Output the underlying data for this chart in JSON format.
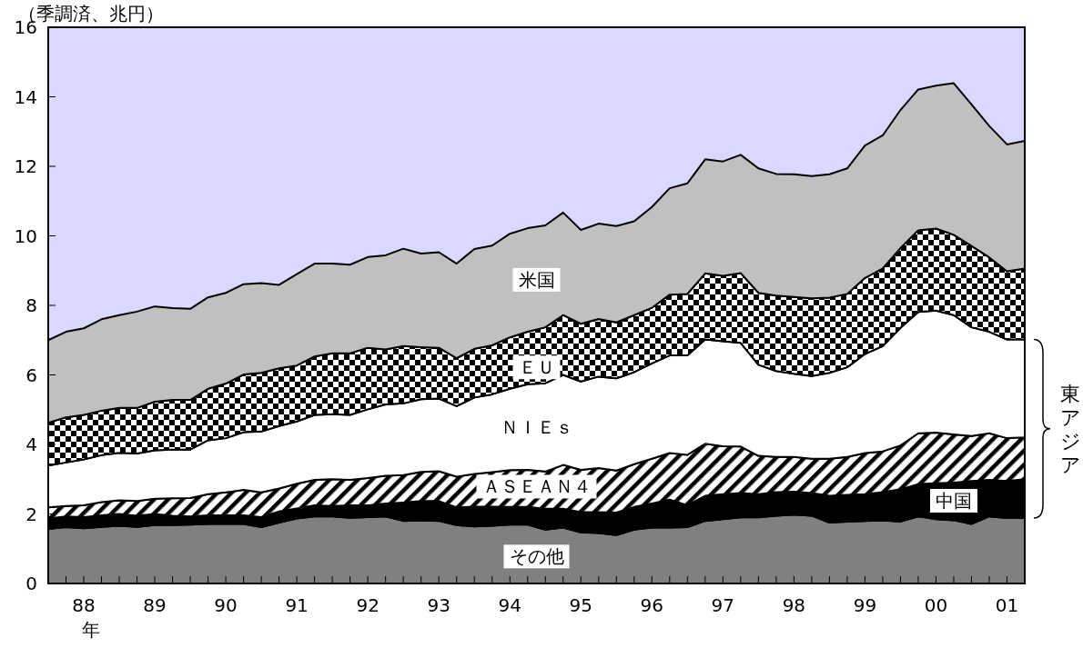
{
  "chart_data": {
    "type": "area",
    "stacked": true,
    "ylabel": "（季調済、兆円）",
    "xlabel": "年",
    "annotations": [
      "東アジア"
    ],
    "legend": false,
    "grid": false,
    "categories": [
      null,
      null,
      "88",
      null,
      null,
      null,
      "89",
      null,
      null,
      null,
      "90",
      null,
      null,
      null,
      "91",
      null,
      null,
      null,
      "92",
      null,
      null,
      null,
      "93",
      null,
      null,
      null,
      "94",
      null,
      null,
      null,
      "95",
      null,
      null,
      null,
      "96",
      null,
      null,
      null,
      "97",
      null,
      null,
      null,
      "98",
      null,
      null,
      null,
      "99",
      null,
      null,
      null,
      "00",
      null,
      null,
      null,
      "01",
      null
    ],
    "ylim": [
      0,
      16
    ],
    "yticks": [
      0,
      2,
      4,
      6,
      8,
      10,
      12,
      14,
      16
    ],
    "series": [
      {
        "name": "その他",
        "color": "#808080",
        "values": [
          1.57,
          1.62,
          1.59,
          1.63,
          1.66,
          1.63,
          1.68,
          1.68,
          1.69,
          1.71,
          1.71,
          1.71,
          1.62,
          1.75,
          1.87,
          1.93,
          1.93,
          1.89,
          1.91,
          1.93,
          1.8,
          1.82,
          1.8,
          1.68,
          1.64,
          1.66,
          1.69,
          1.69,
          1.55,
          1.61,
          1.47,
          1.45,
          1.39,
          1.55,
          1.61,
          1.61,
          1.62,
          1.8,
          1.85,
          1.9,
          1.9,
          1.95,
          1.98,
          1.95,
          1.75,
          1.78,
          1.8,
          1.82,
          1.78,
          1.93,
          1.85,
          1.82,
          1.71,
          1.93,
          1.88,
          1.88
        ]
      },
      {
        "name": "中国",
        "color": "#000000",
        "values": [
          0.3,
          0.31,
          0.32,
          0.33,
          0.34,
          0.32,
          0.32,
          0.27,
          0.24,
          0.25,
          0.25,
          0.25,
          0.29,
          0.32,
          0.29,
          0.32,
          0.3,
          0.36,
          0.34,
          0.37,
          0.53,
          0.55,
          0.57,
          0.51,
          0.57,
          0.55,
          0.51,
          0.51,
          0.6,
          0.54,
          0.58,
          0.6,
          0.65,
          0.65,
          0.69,
          0.8,
          0.63,
          0.72,
          0.72,
          0.7,
          0.67,
          0.68,
          0.66,
          0.65,
          0.77,
          0.77,
          0.77,
          0.81,
          0.93,
          0.93,
          1.03,
          1.08,
          1.24,
          1.05,
          1.07,
          1.12
        ]
      },
      {
        "name": "ＡＳＥＡＮ４",
        "color": "#000000",
        "values": [
          0.32,
          0.3,
          0.34,
          0.38,
          0.39,
          0.42,
          0.44,
          0.5,
          0.53,
          0.61,
          0.66,
          0.73,
          0.71,
          0.66,
          0.71,
          0.73,
          0.77,
          0.73,
          0.78,
          0.8,
          0.79,
          0.84,
          0.86,
          0.88,
          0.94,
          0.99,
          1.06,
          1.07,
          1.07,
          1.26,
          1.22,
          1.27,
          1.21,
          1.23,
          1.29,
          1.34,
          1.45,
          1.5,
          1.38,
          1.34,
          1.1,
          1.01,
          1.0,
          0.99,
          1.07,
          1.09,
          1.18,
          1.17,
          1.26,
          1.46,
          1.46,
          1.39,
          1.29,
          1.34,
          1.23,
          1.2
        ]
      },
      {
        "name": "ＮＩＥｓ",
        "color": "#ffffff",
        "values": [
          1.2,
          1.25,
          1.32,
          1.35,
          1.37,
          1.37,
          1.39,
          1.4,
          1.39,
          1.55,
          1.56,
          1.66,
          1.75,
          1.8,
          1.79,
          1.87,
          1.87,
          1.87,
          1.98,
          2.05,
          2.06,
          2.09,
          2.09,
          2.03,
          2.2,
          2.24,
          2.34,
          2.46,
          2.54,
          2.59,
          2.54,
          2.63,
          2.65,
          2.65,
          2.74,
          2.81,
          2.86,
          3.0,
          3.02,
          2.98,
          2.62,
          2.47,
          2.39,
          2.38,
          2.47,
          2.58,
          2.85,
          3.03,
          3.38,
          3.49,
          3.51,
          3.43,
          3.13,
          2.92,
          2.84,
          2.82
        ]
      },
      {
        "name": "ＥＵ",
        "color": "#000000",
        "values": [
          1.23,
          1.3,
          1.28,
          1.28,
          1.29,
          1.31,
          1.4,
          1.43,
          1.43,
          1.48,
          1.57,
          1.66,
          1.69,
          1.66,
          1.61,
          1.68,
          1.75,
          1.77,
          1.77,
          1.58,
          1.65,
          1.5,
          1.46,
          1.38,
          1.4,
          1.41,
          1.48,
          1.51,
          1.61,
          1.72,
          1.66,
          1.66,
          1.61,
          1.64,
          1.6,
          1.75,
          1.77,
          1.9,
          1.88,
          2.01,
          2.07,
          2.17,
          2.21,
          2.23,
          2.16,
          2.11,
          2.19,
          2.23,
          2.3,
          2.35,
          2.36,
          2.31,
          2.34,
          2.14,
          1.96,
          2.04
        ]
      },
      {
        "name": "米国",
        "color": "#c0c0c0",
        "values": [
          2.38,
          2.46,
          2.49,
          2.63,
          2.67,
          2.77,
          2.74,
          2.64,
          2.62,
          2.63,
          2.61,
          2.6,
          2.58,
          2.4,
          2.63,
          2.67,
          2.58,
          2.55,
          2.61,
          2.71,
          2.8,
          2.69,
          2.75,
          2.72,
          2.87,
          2.87,
          2.98,
          2.98,
          2.93,
          2.95,
          2.7,
          2.74,
          2.77,
          2.7,
          2.9,
          3.06,
          3.18,
          3.28,
          3.29,
          3.4,
          3.58,
          3.5,
          3.53,
          3.52,
          3.55,
          3.61,
          3.81,
          3.83,
          3.97,
          4.05,
          4.11,
          4.36,
          4.07,
          3.78,
          3.65,
          3.67
        ]
      }
    ]
  }
}
